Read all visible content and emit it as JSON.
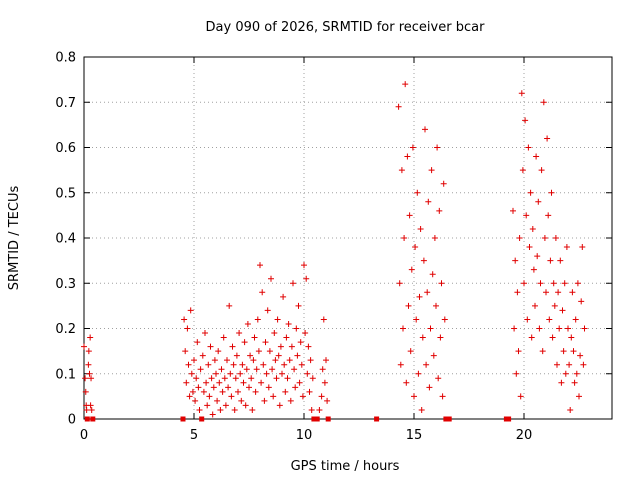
{
  "chart_data": {
    "type": "scatter",
    "title": "Day 090 of 2026, SRMTID for receiver bcar",
    "xlabel": "GPS time / hours",
    "ylabel": "SRMTID / TECUs",
    "xlim": [
      0,
      24
    ],
    "ylim": [
      0,
      0.8
    ],
    "xticks": [
      0,
      5,
      10,
      15,
      20
    ],
    "xtick_labels": [
      "0",
      "5",
      "10",
      "15",
      "20"
    ],
    "yticks": [
      0,
      0.1,
      0.2,
      0.3,
      0.4,
      0.5,
      0.6,
      0.7,
      0.8
    ],
    "ytick_labels": [
      "0",
      "0.1",
      "0.2",
      "0.3",
      "0.4",
      "0.5",
      "0.6",
      "0.7",
      "0.8"
    ],
    "grid": true,
    "marker": "+",
    "color": "#e00000",
    "series": [
      {
        "name": "SRMTID",
        "points": [
          [
            0.0,
            0.16
          ],
          [
            0.05,
            0.09
          ],
          [
            0.08,
            0.06
          ],
          [
            0.1,
            0.03
          ],
          [
            0.12,
            0.02
          ],
          [
            0.15,
            0.0
          ],
          [
            0.2,
            0.12
          ],
          [
            0.22,
            0.15
          ],
          [
            0.25,
            0.1
          ],
          [
            0.28,
            0.18
          ],
          [
            0.3,
            0.03
          ],
          [
            0.32,
            0.09
          ],
          [
            0.35,
            0.02
          ],
          [
            0.4,
            0.0
          ],
          [
            4.5,
            0.0
          ],
          [
            4.55,
            0.22
          ],
          [
            4.6,
            0.15
          ],
          [
            4.65,
            0.08
          ],
          [
            4.7,
            0.2
          ],
          [
            4.75,
            0.12
          ],
          [
            4.8,
            0.05
          ],
          [
            4.85,
            0.24
          ],
          [
            4.9,
            0.1
          ],
          [
            4.95,
            0.06
          ],
          [
            5.0,
            0.13
          ],
          [
            5.05,
            0.04
          ],
          [
            5.1,
            0.09
          ],
          [
            5.15,
            0.17
          ],
          [
            5.2,
            0.07
          ],
          [
            5.25,
            0.02
          ],
          [
            5.3,
            0.11
          ],
          [
            5.35,
            0.0
          ],
          [
            5.4,
            0.14
          ],
          [
            5.45,
            0.06
          ],
          [
            5.5,
            0.19
          ],
          [
            5.55,
            0.08
          ],
          [
            5.6,
            0.03
          ],
          [
            5.65,
            0.12
          ],
          [
            5.7,
            0.05
          ],
          [
            5.75,
            0.16
          ],
          [
            5.8,
            0.09
          ],
          [
            5.85,
            0.01
          ],
          [
            5.9,
            0.07
          ],
          [
            5.95,
            0.13
          ],
          [
            6.0,
            0.1
          ],
          [
            6.05,
            0.04
          ],
          [
            6.1,
            0.15
          ],
          [
            6.15,
            0.08
          ],
          [
            6.2,
            0.02
          ],
          [
            6.25,
            0.11
          ],
          [
            6.3,
            0.06
          ],
          [
            6.35,
            0.18
          ],
          [
            6.4,
            0.09
          ],
          [
            6.45,
            0.03
          ],
          [
            6.5,
            0.13
          ],
          [
            6.55,
            0.07
          ],
          [
            6.6,
            0.25
          ],
          [
            6.65,
            0.1
          ],
          [
            6.7,
            0.05
          ],
          [
            6.75,
            0.16
          ],
          [
            6.8,
            0.12
          ],
          [
            6.85,
            0.02
          ],
          [
            6.9,
            0.09
          ],
          [
            6.95,
            0.14
          ],
          [
            7.0,
            0.06
          ],
          [
            7.05,
            0.19
          ],
          [
            7.1,
            0.1
          ],
          [
            7.15,
            0.04
          ],
          [
            7.2,
            0.12
          ],
          [
            7.25,
            0.08
          ],
          [
            7.3,
            0.17
          ],
          [
            7.35,
            0.03
          ],
          [
            7.4,
            0.11
          ],
          [
            7.45,
            0.21
          ],
          [
            7.5,
            0.07
          ],
          [
            7.55,
            0.14
          ],
          [
            7.6,
            0.09
          ],
          [
            7.65,
            0.02
          ],
          [
            7.7,
            0.13
          ],
          [
            7.75,
            0.18
          ],
          [
            7.8,
            0.06
          ],
          [
            7.85,
            0.11
          ],
          [
            7.9,
            0.22
          ],
          [
            7.95,
            0.15
          ],
          [
            8.0,
            0.34
          ],
          [
            8.05,
            0.08
          ],
          [
            8.1,
            0.28
          ],
          [
            8.15,
            0.12
          ],
          [
            8.2,
            0.04
          ],
          [
            8.25,
            0.17
          ],
          [
            8.3,
            0.1
          ],
          [
            8.35,
            0.24
          ],
          [
            8.4,
            0.07
          ],
          [
            8.45,
            0.15
          ],
          [
            8.5,
            0.31
          ],
          [
            8.55,
            0.11
          ],
          [
            8.6,
            0.05
          ],
          [
            8.65,
            0.19
          ],
          [
            8.7,
            0.13
          ],
          [
            8.75,
            0.09
          ],
          [
            8.8,
            0.22
          ],
          [
            8.85,
            0.14
          ],
          [
            8.9,
            0.03
          ],
          [
            8.95,
            0.16
          ],
          [
            9.0,
            0.1
          ],
          [
            9.05,
            0.27
          ],
          [
            9.1,
            0.12
          ],
          [
            9.15,
            0.06
          ],
          [
            9.2,
            0.18
          ],
          [
            9.25,
            0.09
          ],
          [
            9.3,
            0.21
          ],
          [
            9.35,
            0.13
          ],
          [
            9.4,
            0.04
          ],
          [
            9.45,
            0.16
          ],
          [
            9.5,
            0.3
          ],
          [
            9.55,
            0.11
          ],
          [
            9.6,
            0.07
          ],
          [
            9.65,
            0.2
          ],
          [
            9.7,
            0.14
          ],
          [
            9.75,
            0.25
          ],
          [
            9.8,
            0.08
          ],
          [
            9.85,
            0.17
          ],
          [
            9.9,
            0.12
          ],
          [
            9.95,
            0.05
          ],
          [
            10.0,
            0.34
          ],
          [
            10.05,
            0.19
          ],
          [
            10.1,
            0.31
          ],
          [
            10.15,
            0.1
          ],
          [
            10.2,
            0.16
          ],
          [
            10.25,
            0.06
          ],
          [
            10.3,
            0.13
          ],
          [
            10.35,
            0.02
          ],
          [
            10.4,
            0.09
          ],
          [
            10.45,
            0.0
          ],
          [
            10.6,
            0.0
          ],
          [
            10.7,
            0.02
          ],
          [
            10.8,
            0.05
          ],
          [
            10.85,
            0.11
          ],
          [
            10.9,
            0.22
          ],
          [
            10.95,
            0.08
          ],
          [
            11.0,
            0.13
          ],
          [
            11.05,
            0.04
          ],
          [
            11.1,
            0.0
          ],
          [
            13.3,
            0.0
          ],
          [
            14.3,
            0.69
          ],
          [
            14.35,
            0.3
          ],
          [
            14.4,
            0.12
          ],
          [
            14.45,
            0.55
          ],
          [
            14.5,
            0.2
          ],
          [
            14.55,
            0.4
          ],
          [
            14.6,
            0.74
          ],
          [
            14.65,
            0.08
          ],
          [
            14.7,
            0.58
          ],
          [
            14.75,
            0.25
          ],
          [
            14.8,
            0.45
          ],
          [
            14.85,
            0.15
          ],
          [
            14.9,
            0.33
          ],
          [
            14.95,
            0.6
          ],
          [
            15.0,
            0.05
          ],
          [
            15.05,
            0.38
          ],
          [
            15.1,
            0.22
          ],
          [
            15.15,
            0.5
          ],
          [
            15.2,
            0.1
          ],
          [
            15.25,
            0.27
          ],
          [
            15.3,
            0.42
          ],
          [
            15.35,
            0.02
          ],
          [
            15.4,
            0.18
          ],
          [
            15.45,
            0.35
          ],
          [
            15.5,
            0.64
          ],
          [
            15.55,
            0.12
          ],
          [
            15.6,
            0.28
          ],
          [
            15.65,
            0.48
          ],
          [
            15.7,
            0.07
          ],
          [
            15.75,
            0.2
          ],
          [
            15.8,
            0.55
          ],
          [
            15.85,
            0.32
          ],
          [
            15.9,
            0.14
          ],
          [
            15.95,
            0.4
          ],
          [
            16.0,
            0.25
          ],
          [
            16.05,
            0.6
          ],
          [
            16.1,
            0.09
          ],
          [
            16.15,
            0.46
          ],
          [
            16.2,
            0.18
          ],
          [
            16.25,
            0.3
          ],
          [
            16.3,
            0.05
          ],
          [
            16.35,
            0.52
          ],
          [
            16.4,
            0.22
          ],
          [
            16.45,
            0.0
          ],
          [
            16.6,
            0.0
          ],
          [
            19.2,
            0.0
          ],
          [
            19.3,
            0.0
          ],
          [
            19.5,
            0.46
          ],
          [
            19.55,
            0.2
          ],
          [
            19.6,
            0.35
          ],
          [
            19.65,
            0.1
          ],
          [
            19.7,
            0.28
          ],
          [
            19.75,
            0.15
          ],
          [
            19.8,
            0.4
          ],
          [
            19.85,
            0.05
          ],
          [
            19.9,
            0.72
          ],
          [
            19.95,
            0.55
          ],
          [
            20.0,
            0.3
          ],
          [
            20.05,
            0.66
          ],
          [
            20.1,
            0.45
          ],
          [
            20.15,
            0.22
          ],
          [
            20.2,
            0.6
          ],
          [
            20.25,
            0.38
          ],
          [
            20.3,
            0.5
          ],
          [
            20.35,
            0.18
          ],
          [
            20.4,
            0.42
          ],
          [
            20.45,
            0.33
          ],
          [
            20.5,
            0.25
          ],
          [
            20.55,
            0.58
          ],
          [
            20.6,
            0.36
          ],
          [
            20.65,
            0.48
          ],
          [
            20.7,
            0.2
          ],
          [
            20.75,
            0.3
          ],
          [
            20.8,
            0.55
          ],
          [
            20.85,
            0.15
          ],
          [
            20.9,
            0.7
          ],
          [
            20.95,
            0.4
          ],
          [
            21.0,
            0.28
          ],
          [
            21.05,
            0.62
          ],
          [
            21.1,
            0.45
          ],
          [
            21.15,
            0.22
          ],
          [
            21.2,
            0.35
          ],
          [
            21.25,
            0.5
          ],
          [
            21.3,
            0.18
          ],
          [
            21.35,
            0.3
          ],
          [
            21.4,
            0.25
          ],
          [
            21.45,
            0.4
          ],
          [
            21.5,
            0.12
          ],
          [
            21.55,
            0.28
          ],
          [
            21.6,
            0.2
          ],
          [
            21.65,
            0.35
          ],
          [
            21.7,
            0.08
          ],
          [
            21.75,
            0.24
          ],
          [
            21.8,
            0.15
          ],
          [
            21.85,
            0.3
          ],
          [
            21.9,
            0.1
          ],
          [
            21.95,
            0.38
          ],
          [
            22.0,
            0.2
          ],
          [
            22.05,
            0.12
          ],
          [
            22.1,
            0.02
          ],
          [
            22.15,
            0.18
          ],
          [
            22.2,
            0.28
          ],
          [
            22.25,
            0.15
          ],
          [
            22.3,
            0.08
          ],
          [
            22.35,
            0.22
          ],
          [
            22.4,
            0.1
          ],
          [
            22.45,
            0.3
          ],
          [
            22.5,
            0.05
          ],
          [
            22.55,
            0.14
          ],
          [
            22.6,
            0.26
          ],
          [
            22.65,
            0.38
          ],
          [
            22.7,
            0.12
          ],
          [
            22.75,
            0.2
          ]
        ]
      }
    ]
  }
}
